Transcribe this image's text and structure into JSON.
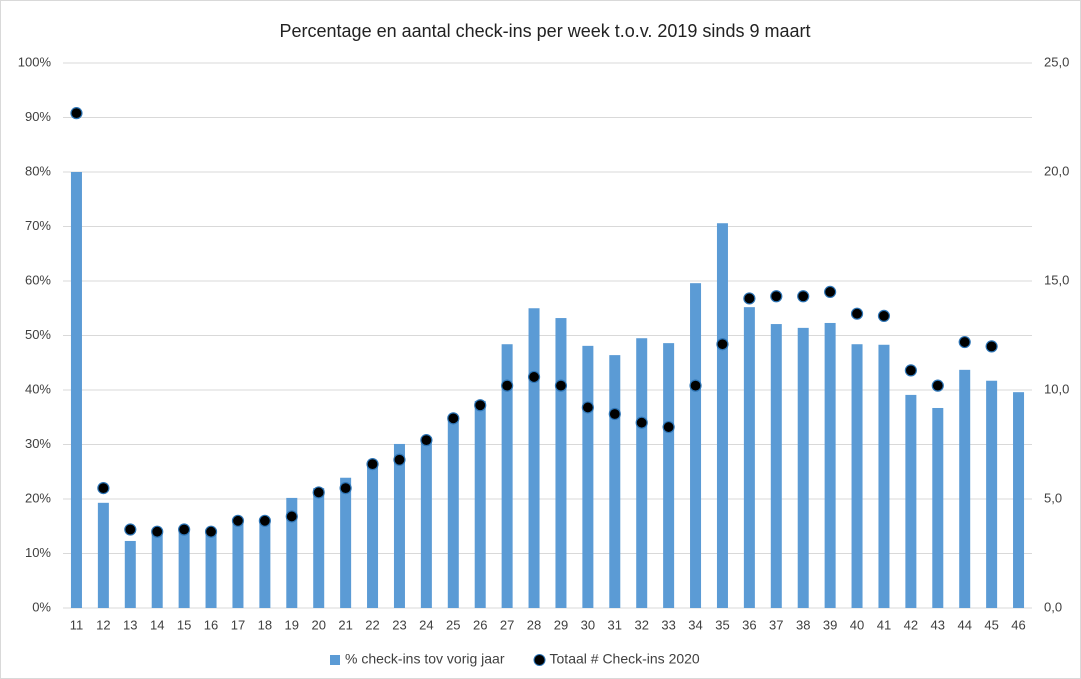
{
  "chart_data": {
    "type": "bar",
    "title": "Percentage en aantal check-ins per week t.o.v. 2019 sinds 9 maart",
    "categories": [
      "11",
      "12",
      "13",
      "14",
      "15",
      "16",
      "17",
      "18",
      "19",
      "20",
      "21",
      "22",
      "23",
      "24",
      "25",
      "26",
      "27",
      "28",
      "29",
      "30",
      "31",
      "32",
      "33",
      "34",
      "35",
      "36",
      "37",
      "38",
      "39",
      "40",
      "41",
      "42",
      "43",
      "44",
      "45",
      "46"
    ],
    "series": [
      {
        "name": "% check-ins tov vorig jaar",
        "type": "bar",
        "color": "#5b9bd5",
        "axis": "y",
        "values": [
          80,
          19.3,
          12.3,
          14,
          14.5,
          14,
          16,
          16.5,
          20.2,
          22,
          23.9,
          26.6,
          30.1,
          31.4,
          34.9,
          38,
          48.4,
          55,
          53.2,
          48.1,
          46.4,
          49.5,
          48.6,
          59.6,
          70.6,
          55.2,
          52.1,
          51.4,
          52.3,
          48.4,
          48.3,
          39.1,
          36.7,
          43.7,
          41.7,
          39.6
        ]
      },
      {
        "name": "Totaal # Check-ins 2020",
        "type": "scatter",
        "color": "#000000",
        "axis": "y2",
        "values": [
          22.7,
          5.5,
          3.6,
          3.5,
          3.6,
          3.5,
          4.0,
          4.0,
          4.2,
          5.3,
          5.5,
          6.6,
          6.8,
          7.7,
          8.7,
          9.3,
          10.2,
          10.6,
          10.2,
          9.2,
          8.9,
          8.5,
          8.3,
          10.2,
          12.1,
          14.2,
          14.3,
          14.3,
          14.5,
          13.5,
          13.4,
          10.9,
          10.2,
          12.2,
          12.0,
          null
        ]
      }
    ],
    "ylim": [
      0,
      100
    ],
    "yticks": [
      {
        "value": 0,
        "label": "0%"
      },
      {
        "value": 10,
        "label": "10%"
      },
      {
        "value": 20,
        "label": "20%"
      },
      {
        "value": 30,
        "label": "30%"
      },
      {
        "value": 40,
        "label": "40%"
      },
      {
        "value": 50,
        "label": "50%"
      },
      {
        "value": 60,
        "label": "60%"
      },
      {
        "value": 70,
        "label": "70%"
      },
      {
        "value": 80,
        "label": "80%"
      },
      {
        "value": 90,
        "label": "90%"
      },
      {
        "value": 100,
        "label": "100%"
      }
    ],
    "y2lim": [
      0,
      25
    ],
    "y2ticks": [
      {
        "value": 0,
        "label": "0,0"
      },
      {
        "value": 5,
        "label": "5,0"
      },
      {
        "value": 10,
        "label": "10,0"
      },
      {
        "value": 15,
        "label": "15,0"
      },
      {
        "value": 20,
        "label": "20,0"
      },
      {
        "value": 25,
        "label": "25,0"
      }
    ],
    "grid": true
  }
}
